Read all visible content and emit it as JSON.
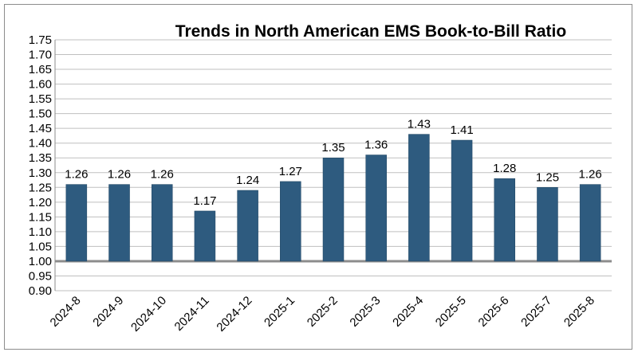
{
  "chart_data": {
    "type": "bar",
    "title": "Trends in North American EMS Book-to-Bill Ratio",
    "xlabel": "",
    "ylabel": "",
    "categories": [
      "2024-8",
      "2024-9",
      "2024-10",
      "2024-11",
      "2024-12",
      "2025-1",
      "2025-2",
      "2025-3",
      "2025-4",
      "2025-5",
      "2025-6",
      "2025-7",
      "2025-8"
    ],
    "values": [
      1.26,
      1.26,
      1.26,
      1.17,
      1.24,
      1.27,
      1.35,
      1.36,
      1.43,
      1.41,
      1.28,
      1.25,
      1.26
    ],
    "data_labels": [
      "1.26",
      "1.26",
      "1.26",
      "1.17",
      "1.24",
      "1.27",
      "1.35",
      "1.36",
      "1.43",
      "1.41",
      "1.28",
      "1.25",
      "1.26"
    ],
    "ylim": [
      0.9,
      1.75
    ],
    "baseline": 1.0,
    "y_ticks": [
      "0.90",
      "0.95",
      "1.00",
      "1.05",
      "1.10",
      "1.15",
      "1.20",
      "1.25",
      "1.30",
      "1.35",
      "1.40",
      "1.45",
      "1.50",
      "1.55",
      "1.60",
      "1.65",
      "1.70",
      "1.75"
    ],
    "grid": true,
    "legend": "none",
    "colors": {
      "bar": "#2e5b7f",
      "bar_edge": "#1f4461",
      "grid": "#bfbfbf",
      "baseline": "#8c8c8c"
    }
  }
}
